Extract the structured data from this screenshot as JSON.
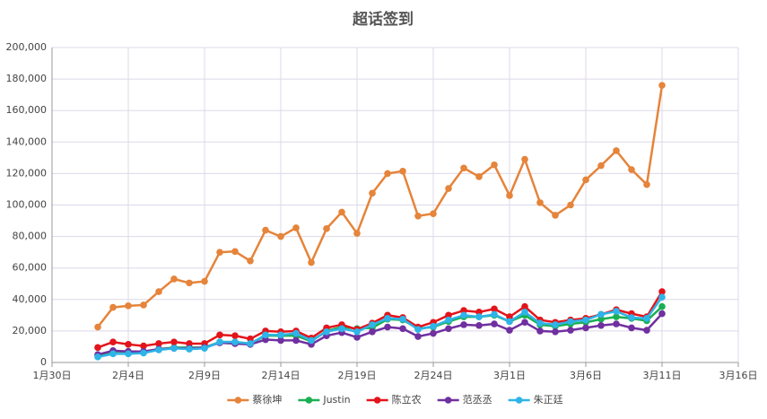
{
  "chart_data": {
    "type": "line",
    "title": "超话签到",
    "x": [
      "2月2日",
      "2月3日",
      "2月4日",
      "2月5日",
      "2月6日",
      "2月7日",
      "2月8日",
      "2月9日",
      "2月10日",
      "2月11日",
      "2月12日",
      "2月13日",
      "2月14日",
      "2月15日",
      "2月16日",
      "2月17日",
      "2月18日",
      "2月19日",
      "2月20日",
      "2月21日",
      "2月22日",
      "2月23日",
      "2月24日",
      "2月25日",
      "2月26日",
      "2月27日",
      "2月28日",
      "3月1日",
      "3月2日",
      "3月3日",
      "3月4日",
      "3月5日",
      "3月6日",
      "3月7日",
      "3月8日",
      "3月9日",
      "3月10日",
      "3月11日"
    ],
    "xlim": [
      "1月30日",
      "3月16日"
    ],
    "xticks": [
      "1月30日",
      "2月4日",
      "2月9日",
      "2月14日",
      "2月19日",
      "2月24日",
      "3月1日",
      "3月6日",
      "3月11日",
      "3月16日"
    ],
    "ylim": [
      0,
      200000
    ],
    "yticks": [
      0,
      {
        "value": 20000,
        "label": "20,000"
      },
      {
        "value": 40000,
        "label": "40,000"
      },
      {
        "value": 60000,
        "label": "60,000"
      },
      {
        "value": 80000,
        "label": "80,000"
      },
      {
        "value": 100000,
        "label": "100,000"
      },
      {
        "value": 120000,
        "label": "120,000"
      },
      {
        "value": 140000,
        "label": "140,000"
      },
      {
        "value": 160000,
        "label": "160,000"
      },
      {
        "value": 180000,
        "label": "180,000"
      },
      {
        "value": 200000,
        "label": "200,000"
      }
    ],
    "grid": true,
    "legend": "bottom",
    "series": [
      {
        "name": "蔡徐坤",
        "color": "#e5843a",
        "values": [
          22500,
          35000,
          36000,
          36500,
          45000,
          53000,
          50500,
          51500,
          70000,
          70500,
          64500,
          84000,
          80000,
          85500,
          63500,
          85000,
          95500,
          82000,
          107500,
          120000,
          121500,
          93000,
          94500,
          110500,
          123500,
          118000,
          125500,
          106000,
          129000,
          101500,
          93500,
          100000,
          116000,
          125000,
          134500,
          122500,
          113000,
          176000
        ]
      },
      {
        "name": "Justin",
        "color": "#1aaf54",
        "values": [
          4500,
          7000,
          7000,
          6500,
          8500,
          9500,
          9500,
          9500,
          13000,
          13000,
          12000,
          17000,
          17000,
          17000,
          13500,
          20000,
          22500,
          21500,
          22000,
          27500,
          27000,
          21500,
          22500,
          26000,
          29000,
          29000,
          30000,
          26000,
          30000,
          24000,
          23000,
          24500,
          25500,
          27500,
          29000,
          28000,
          26500,
          35500
        ]
      },
      {
        "name": "陈立农",
        "color": "#e3141b",
        "values": [
          9500,
          13000,
          11500,
          10500,
          12000,
          13000,
          12000,
          12000,
          17500,
          17000,
          15000,
          20000,
          19500,
          20000,
          15500,
          22000,
          24000,
          21000,
          25000,
          30000,
          28500,
          22500,
          25500,
          30000,
          33000,
          32000,
          34000,
          29000,
          35500,
          27000,
          25500,
          27000,
          28000,
          30500,
          33500,
          31000,
          29000,
          45000
        ]
      },
      {
        "name": "范丞丞",
        "color": "#7030a0",
        "values": [
          5000,
          7500,
          7000,
          7000,
          8500,
          9000,
          9000,
          9500,
          12500,
          12000,
          11500,
          14500,
          14000,
          14000,
          11500,
          17000,
          19000,
          16000,
          19500,
          22500,
          21500,
          16500,
          18500,
          21500,
          24000,
          23500,
          24500,
          20500,
          25500,
          20000,
          19500,
          20500,
          22000,
          23500,
          24500,
          22000,
          20500,
          31000
        ]
      },
      {
        "name": "朱正廷",
        "color": "#2eb4e8",
        "values": [
          3500,
          5500,
          5500,
          6000,
          8000,
          9000,
          8500,
          9000,
          13000,
          13000,
          12000,
          17500,
          17500,
          18500,
          14000,
          19500,
          21500,
          19500,
          24000,
          28000,
          27500,
          21000,
          23000,
          27000,
          30000,
          29000,
          30500,
          26000,
          32000,
          25000,
          24000,
          26000,
          27000,
          30500,
          32500,
          28500,
          28000,
          41500
        ]
      }
    ]
  }
}
